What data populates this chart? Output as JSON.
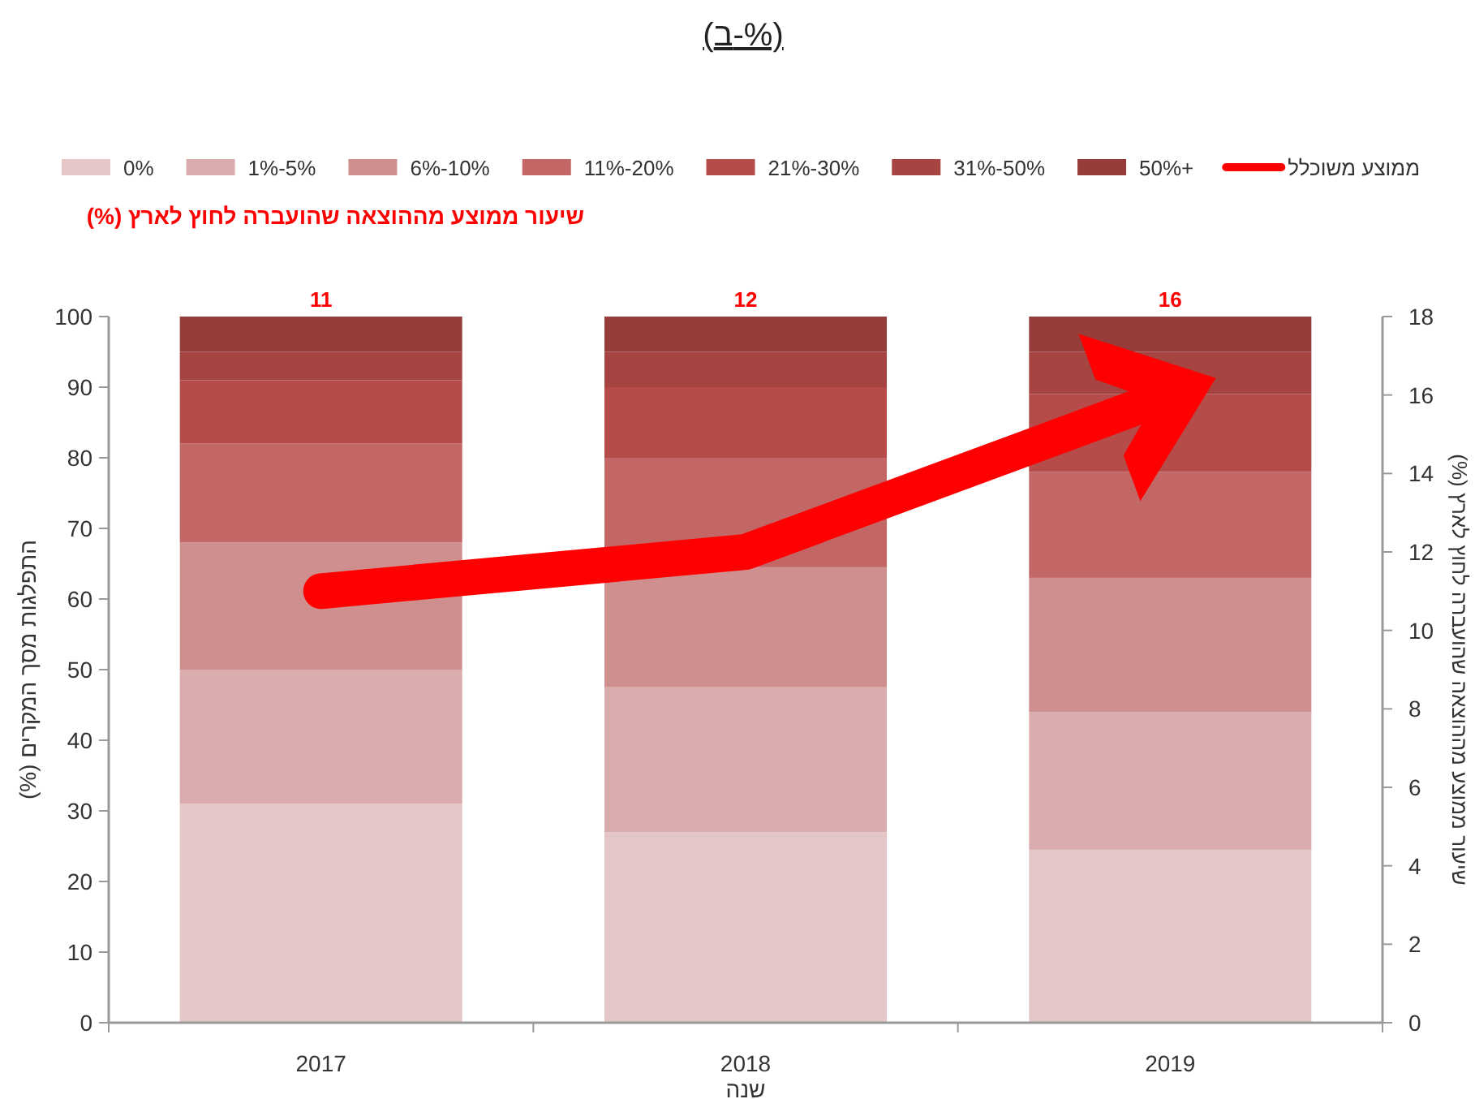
{
  "chart_data": {
    "type": "bar",
    "title": "(ב-%)",
    "xlabel": "שנה",
    "ylabel": "התפלגות מסך המקרים (%)",
    "y2label": "שיעור ממוצע מההוצאה שהועברה לחוץ לארץ (%)",
    "annotations": [
      "שיעור ממוצע מההוצאה שהועברה לחוץ לארץ (%)",
      "11",
      "12",
      "16"
    ],
    "categories": [
      "2017",
      "2018",
      "2019"
    ],
    "stacked": true,
    "legend": "top",
    "grid": false,
    "ylim": [
      0,
      100
    ],
    "yticks": [
      0,
      10,
      20,
      30,
      40,
      50,
      60,
      70,
      80,
      90,
      100
    ],
    "y2lim": [
      0,
      18
    ],
    "y2ticks": [
      0,
      2,
      4,
      6,
      8,
      10,
      12,
      14,
      16,
      18
    ],
    "series": [
      {
        "name": "0%",
        "color": "#e4c6c7",
        "values": [
          31,
          27,
          24.5
        ]
      },
      {
        "name": "1%-5%",
        "color": "#dbacad",
        "values": [
          19,
          20.5,
          19.5
        ]
      },
      {
        "name": "6%-10%",
        "color": "#d08f8f",
        "values": [
          18,
          17,
          19
        ]
      },
      {
        "name": "11%-20%",
        "color": "#c36666",
        "values": [
          14,
          15.5,
          15
        ]
      },
      {
        "name": "21%-30%",
        "color": "#b54c4a",
        "values": [
          9,
          10,
          11
        ]
      },
      {
        "name": "31%-50%",
        "color": "#a64442",
        "values": [
          4,
          5,
          6
        ]
      },
      {
        "name": "50%+",
        "color": "#963c3a",
        "values": [
          5,
          5,
          5
        ]
      },
      {
        "name": "ממוצע משוכלל",
        "type": "line",
        "axis": "y2",
        "color": "#ff0000",
        "values": [
          11,
          12,
          16
        ]
      }
    ]
  }
}
